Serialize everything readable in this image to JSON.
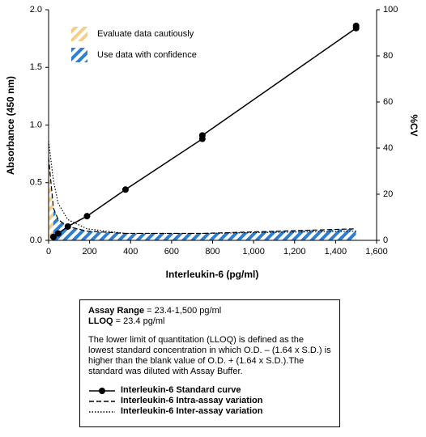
{
  "chart_data": {
    "type": "line",
    "x_label": "Interleukin-6 (pg/ml)",
    "y_label": "Absorbance (450 nm)",
    "y2_label": "%CV",
    "xlim": [
      0,
      1600
    ],
    "xticks": [
      0,
      200,
      400,
      600,
      800,
      {
        "value": 1000,
        "label": "1,000"
      },
      {
        "value": 1200,
        "label": "1,200"
      },
      {
        "value": 1400,
        "label": "1,400"
      },
      {
        "value": 1600,
        "label": "1,600"
      }
    ],
    "ylim": [
      0,
      2
    ],
    "yticks": [
      {
        "value": 0,
        "label": "0.0"
      },
      0.5,
      {
        "value": 1,
        "label": "1.0"
      },
      1.5,
      {
        "value": 2,
        "label": "2.0"
      }
    ],
    "y2lim": [
      0,
      100
    ],
    "y2ticks": [
      0,
      20,
      40,
      60,
      80,
      100
    ],
    "series": [
      {
        "name": "Interleukin-6 Standard curve",
        "color": "#000000",
        "dash": "solid",
        "marker": "circle",
        "x": [
          23.4,
          46.9,
          93.8,
          187.5,
          375,
          750,
          750,
          1500,
          1500
        ],
        "values": [
          0.03,
          0.06,
          0.12,
          0.21,
          0.44,
          0.88,
          0.91,
          1.84,
          1.86
        ]
      },
      {
        "name": "Interleukin-6 Intra-assay variation",
        "color": "#000000",
        "dash": "dashed",
        "axis": "y2",
        "x": [
          0,
          23.4,
          46.9,
          93.8,
          187.5,
          375,
          750,
          1500
        ],
        "values": [
          36,
          14,
          9,
          6,
          4,
          3,
          3,
          5
        ]
      },
      {
        "name": "Interleukin-6 Inter-assay variation",
        "color": "#000000",
        "dash": "dotted",
        "axis": "y2",
        "x": [
          0,
          23.4,
          46.9,
          93.8,
          187.5,
          375,
          750,
          1500
        ],
        "values": [
          43,
          26,
          16,
          9,
          5,
          3,
          3,
          4
        ]
      }
    ],
    "regions": [
      {
        "name": "Evaluate data cautiously",
        "color": "#f3cf8a",
        "range": [
          0,
          23.4
        ]
      },
      {
        "name": "Use data with confidence",
        "color": "#2f7fd0",
        "range": [
          23.4,
          1500
        ]
      }
    ],
    "info": {
      "items": [
        {
          "label": "Assay Range",
          "text": "= 23.4-1,500 pg/ml"
        },
        {
          "label": "LLOQ",
          "text": "= 23.4 pg/ml"
        }
      ],
      "note": "The lower limit of quantitation (LLOQ) is defined as the lowest standard concentration in which O.D. – (1.64 x S.D.) is higher than the blank value of O.D. + (1.64 x S.D.).The standard was diluted with Assay Buffer."
    }
  }
}
